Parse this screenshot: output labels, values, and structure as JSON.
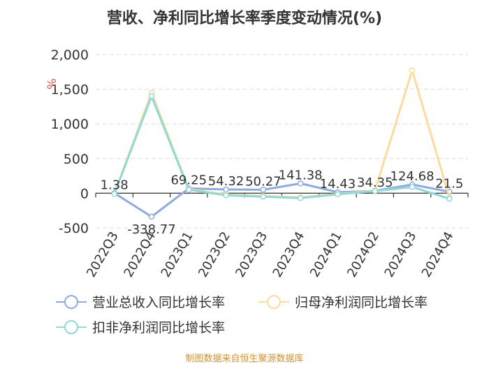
{
  "title": "营收、净利同比增长率季度变动情况(%)",
  "source": "制图数据来自恒生聚源数据库",
  "chart_data": {
    "type": "line",
    "ylabel": "%",
    "ylim": [
      -500,
      2000
    ],
    "yticks": [
      -500,
      0,
      500,
      1000,
      1500,
      2000
    ],
    "ytick_labels": [
      "-500",
      "0",
      "500",
      "1,000",
      "1,500",
      "2,000"
    ],
    "categories": [
      "2022Q3",
      "2022Q4",
      "2023Q1",
      "2023Q2",
      "2023Q3",
      "2023Q4",
      "2024Q1",
      "2024Q2",
      "2024Q3",
      "2024Q4"
    ],
    "series": [
      {
        "name": "营业总收入同比增长率",
        "color": "#8faadc",
        "values": [
          1.38,
          -338.77,
          69.25,
          54.32,
          50.27,
          141.38,
          14.43,
          34.35,
          124.68,
          21.5
        ],
        "labels": [
          "1.38",
          "-338.77",
          "69.25",
          "54.32",
          "50.27",
          "141.38",
          "14.43",
          "34.35",
          "124.68",
          "21.5"
        ]
      },
      {
        "name": "归母净利润同比增长率",
        "color": "#fbdc9e",
        "values": [
          -10,
          1450,
          60,
          -20,
          -40,
          -60,
          -10,
          40,
          1770,
          -60
        ]
      },
      {
        "name": "扣非净利润同比增长率",
        "color": "#8fd9d7",
        "values": [
          -10,
          1400,
          50,
          -30,
          -50,
          -70,
          -15,
          30,
          90,
          -80
        ]
      }
    ],
    "grid": true,
    "legend_position": "bottom"
  }
}
